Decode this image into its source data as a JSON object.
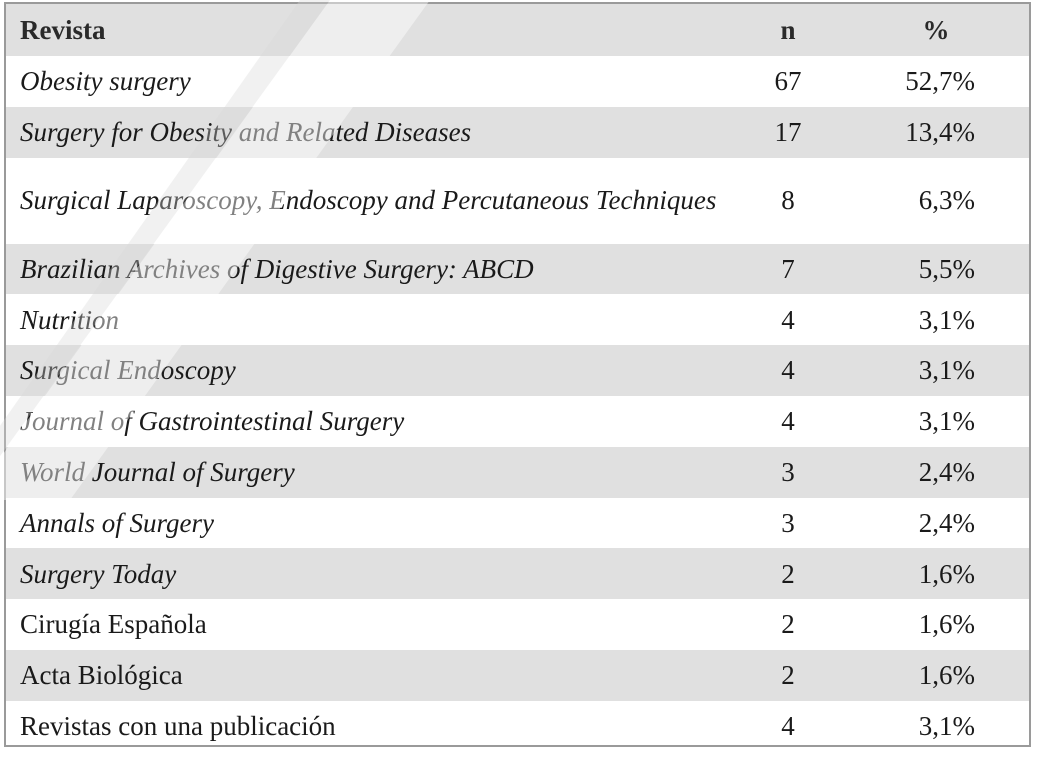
{
  "table": {
    "headers": {
      "journal": "Revista",
      "n": "n",
      "percent": "%"
    },
    "rows": [
      {
        "journal": "Obesity surgery",
        "n": "67",
        "percent": "52,7%",
        "italic": true
      },
      {
        "journal": "Surgery for Obesity and Related Diseases",
        "n": "17",
        "percent": "13,4%",
        "italic": true
      },
      {
        "journal": "Surgical Laparoscopy, Endoscopy and Percutaneous Techniques",
        "n": "8",
        "percent": "6,3%",
        "italic": true
      },
      {
        "journal": "Brazilian Archives of Digestive Surgery: ABCD",
        "n": "7",
        "percent": "5,5%",
        "italic": true
      },
      {
        "journal": "Nutrition",
        "n": "4",
        "percent": "3,1%",
        "italic": true
      },
      {
        "journal": "Surgical Endoscopy",
        "n": "4",
        "percent": "3,1%",
        "italic": true
      },
      {
        "journal": "Journal of Gastrointestinal Surgery",
        "n": "4",
        "percent": "3,1%",
        "italic": true
      },
      {
        "journal": "World Journal of Surgery",
        "n": "3",
        "percent": "2,4%",
        "italic": true
      },
      {
        "journal": "Annals of Surgery",
        "n": "3",
        "percent": "2,4%",
        "italic": true
      },
      {
        "journal": "Surgery Today",
        "n": "2",
        "percent": "1,6%",
        "italic": true
      },
      {
        "journal": "Cirugía Española",
        "n": "2",
        "percent": "1,6%",
        "italic": false
      },
      {
        "journal": "Acta Biológica",
        "n": "2",
        "percent": "1,6%",
        "italic": false
      },
      {
        "journal": "Revistas con una publicación",
        "n": "4",
        "percent": "3,1%",
        "italic": false
      }
    ]
  },
  "colors": {
    "band": "#e0e0e0",
    "border": "#9a9a9a",
    "text": "#1a1a1a"
  }
}
